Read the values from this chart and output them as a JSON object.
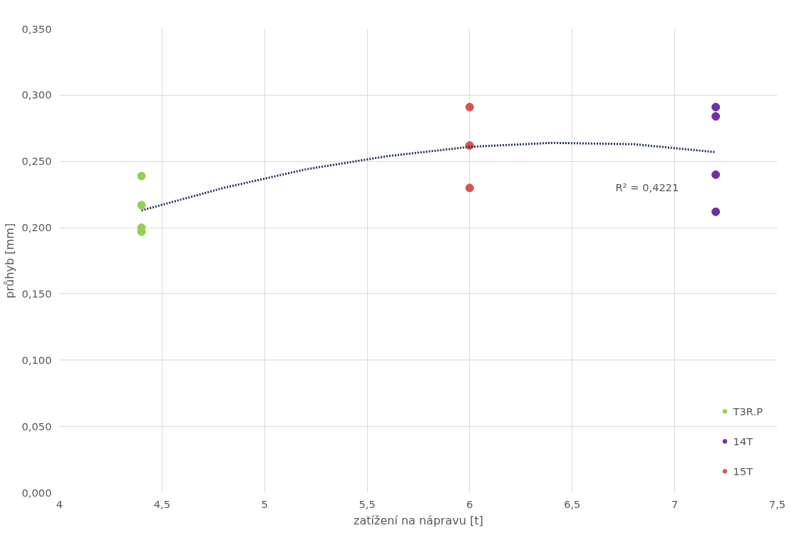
{
  "chart_data": {
    "type": "scatter",
    "xlabel": "zatížení na nápravu [t]",
    "ylabel": "průhyb [mm]",
    "xlim": [
      4,
      7.5
    ],
    "xticks": [
      {
        "value": 4,
        "label": "4"
      },
      {
        "value": 4.5,
        "label": "4,5"
      },
      {
        "value": 5,
        "label": "5"
      },
      {
        "value": 5.5,
        "label": "5,5"
      },
      {
        "value": 6,
        "label": "6"
      },
      {
        "value": 6.5,
        "label": "6,5"
      },
      {
        "value": 7,
        "label": "7"
      },
      {
        "value": 7.5,
        "label": "7,5"
      }
    ],
    "ylim": [
      0,
      0.35
    ],
    "yticks": [
      {
        "value": 0,
        "label": "0,000"
      },
      {
        "value": 0.05,
        "label": "0,050"
      },
      {
        "value": 0.1,
        "label": "0,100"
      },
      {
        "value": 0.15,
        "label": "0,150"
      },
      {
        "value": 0.2,
        "label": "0,200"
      },
      {
        "value": 0.25,
        "label": "0,250"
      },
      {
        "value": 0.3,
        "label": "0,300"
      },
      {
        "value": 0.35,
        "label": "0,350"
      }
    ],
    "grid": true,
    "legend": "bottom right",
    "marker": "circle",
    "series": [
      {
        "name": "T3R.P",
        "color": "#92d050",
        "x": [
          4.4,
          4.4,
          4.4,
          4.4
        ],
        "values": [
          0.239,
          0.217,
          0.2,
          0.197
        ]
      },
      {
        "name": "14T",
        "color": "#7030a0",
        "x": [
          7.2,
          7.2,
          7.2,
          7.2
        ],
        "values": [
          0.291,
          0.284,
          0.24,
          0.212
        ]
      },
      {
        "name": "15T",
        "color": "#d9534f",
        "x": [
          6,
          6,
          6
        ],
        "values": [
          0.291,
          0.262,
          0.23
        ]
      },
      {
        "type": "line",
        "marker": "none",
        "line_style": "dotted",
        "color": "#1f2d5c",
        "x": [
          4.4,
          4.8,
          5.2,
          5.6,
          6.0,
          6.4,
          6.8,
          7.2
        ],
        "values": [
          0.213,
          0.23,
          0.244,
          0.254,
          0.261,
          0.264,
          0.263,
          0.257
        ]
      }
    ],
    "annotations": [
      "R² = 0,4221"
    ]
  }
}
